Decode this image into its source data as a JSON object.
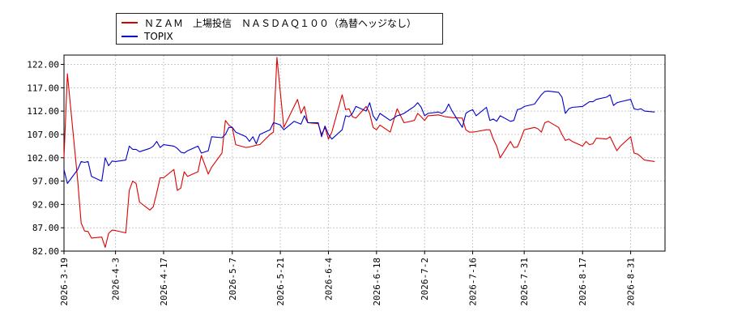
{
  "chart_data": {
    "type": "line",
    "ylim": [
      82,
      124
    ],
    "yticks": [
      "82.00",
      "87.00",
      "92.00",
      "97.00",
      "102.00",
      "107.00",
      "112.00",
      "117.00",
      "122.00"
    ],
    "x_range": [
      "2026-3-19",
      "2026-9-10"
    ],
    "x_tick_labels": [
      "2026-3-19",
      "2026-4-3",
      "2026-4-17",
      "2026-5-7",
      "2026-5-21",
      "2026-6-4",
      "2026-6-18",
      "2026-7-2",
      "2026-7-16",
      "2026-7-31",
      "2026-8-17",
      "2026-8-31"
    ],
    "grid": true,
    "legend_position": "top-left",
    "series": [
      {
        "name": "ＮＺＡＭ　上場投信　ＮＡＳＤＡＱ１００（為替ヘッジなし）",
        "color": "#dd0000",
        "points": [
          [
            "2026-3-19",
            102.0
          ],
          [
            "2026-3-20",
            120.0
          ],
          [
            "2026-3-23",
            97.0
          ],
          [
            "2026-3-24",
            88.0
          ],
          [
            "2026-3-25",
            86.3
          ],
          [
            "2026-3-26",
            86.2
          ],
          [
            "2026-3-27",
            84.8
          ],
          [
            "2026-3-30",
            85.0
          ],
          [
            "2026-3-31",
            82.8
          ],
          [
            "2026-4-1",
            85.8
          ],
          [
            "2026-4-2",
            86.5
          ],
          [
            "2026-4-3",
            86.4
          ],
          [
            "2026-4-6",
            85.9
          ],
          [
            "2026-4-7",
            95.0
          ],
          [
            "2026-4-8",
            97.0
          ],
          [
            "2026-4-9",
            96.5
          ],
          [
            "2026-4-10",
            92.5
          ],
          [
            "2026-4-13",
            90.8
          ],
          [
            "2026-4-14",
            91.5
          ],
          [
            "2026-4-15",
            94.5
          ],
          [
            "2026-4-16",
            97.7
          ],
          [
            "2026-4-17",
            97.7
          ],
          [
            "2026-4-20",
            99.5
          ],
          [
            "2026-4-21",
            95.0
          ],
          [
            "2026-4-22",
            95.5
          ],
          [
            "2026-4-23",
            99.0
          ],
          [
            "2026-4-24",
            98.0
          ],
          [
            "2026-4-27",
            99.0
          ],
          [
            "2026-4-28",
            102.5
          ],
          [
            "2026-4-30",
            98.5
          ],
          [
            "2026-5-1",
            100.0
          ],
          [
            "2026-5-4",
            103.0
          ],
          [
            "2026-5-5",
            110.0
          ],
          [
            "2026-5-6",
            109.0
          ],
          [
            "2026-5-7",
            108.5
          ],
          [
            "2026-5-8",
            104.8
          ],
          [
            "2026-5-11",
            104.2
          ],
          [
            "2026-5-12",
            104.3
          ],
          [
            "2026-5-13",
            104.5
          ],
          [
            "2026-5-14",
            104.7
          ],
          [
            "2026-5-15",
            104.8
          ],
          [
            "2026-5-18",
            107.0
          ],
          [
            "2026-5-19",
            107.5
          ],
          [
            "2026-5-20",
            123.5
          ],
          [
            "2026-5-21",
            116.0
          ],
          [
            "2026-5-22",
            108.5
          ],
          [
            "2026-5-25",
            113.0
          ],
          [
            "2026-5-26",
            114.5
          ],
          [
            "2026-5-27",
            111.5
          ],
          [
            "2026-5-28",
            113.0
          ],
          [
            "2026-5-29",
            109.5
          ],
          [
            "2026-6-1",
            109.3
          ],
          [
            "2026-6-2",
            107.0
          ],
          [
            "2026-6-3",
            108.5
          ],
          [
            "2026-6-4",
            106.0
          ],
          [
            "2026-6-5",
            107.5
          ],
          [
            "2026-6-8",
            115.5
          ],
          [
            "2026-6-9",
            112.3
          ],
          [
            "2026-6-10",
            112.5
          ],
          [
            "2026-6-11",
            110.8
          ],
          [
            "2026-6-12",
            110.5
          ],
          [
            "2026-6-15",
            113.0
          ],
          [
            "2026-6-16",
            111.5
          ],
          [
            "2026-6-17",
            108.5
          ],
          [
            "2026-6-18",
            108.0
          ],
          [
            "2026-6-19",
            109.0
          ],
          [
            "2026-6-22",
            107.5
          ],
          [
            "2026-6-23",
            110.0
          ],
          [
            "2026-6-24",
            112.5
          ],
          [
            "2026-6-25",
            111.0
          ],
          [
            "2026-6-26",
            109.5
          ],
          [
            "2026-6-29",
            110.0
          ],
          [
            "2026-6-30",
            111.5
          ],
          [
            "2026-7-1",
            110.8
          ],
          [
            "2026-7-2",
            110.0
          ],
          [
            "2026-7-3",
            111.0
          ],
          [
            "2026-7-6",
            111.2
          ],
          [
            "2026-7-7",
            111.0
          ],
          [
            "2026-7-8",
            110.8
          ],
          [
            "2026-7-9",
            110.7
          ],
          [
            "2026-7-10",
            110.6
          ],
          [
            "2026-7-13",
            110.5
          ],
          [
            "2026-7-14",
            108.0
          ],
          [
            "2026-7-15",
            107.5
          ],
          [
            "2026-7-16",
            107.5
          ],
          [
            "2026-7-17",
            107.6
          ],
          [
            "2026-7-20",
            108.0
          ],
          [
            "2026-7-21",
            108.0
          ],
          [
            "2026-7-22",
            106.0
          ],
          [
            "2026-7-23",
            104.5
          ],
          [
            "2026-7-24",
            102.0
          ],
          [
            "2026-7-27",
            105.5
          ],
          [
            "2026-7-28",
            104.2
          ],
          [
            "2026-7-29",
            104.3
          ],
          [
            "2026-7-30",
            106.0
          ],
          [
            "2026-7-31",
            108.0
          ],
          [
            "2026-8-3",
            108.5
          ],
          [
            "2026-8-4",
            108.2
          ],
          [
            "2026-8-5",
            107.5
          ],
          [
            "2026-8-6",
            109.5
          ],
          [
            "2026-8-7",
            109.8
          ],
          [
            "2026-8-10",
            108.5
          ],
          [
            "2026-8-11",
            107.0
          ],
          [
            "2026-8-12",
            105.7
          ],
          [
            "2026-8-13",
            106.0
          ],
          [
            "2026-8-14",
            105.5
          ],
          [
            "2026-8-17",
            104.5
          ],
          [
            "2026-8-18",
            105.5
          ],
          [
            "2026-8-19",
            104.8
          ],
          [
            "2026-8-20",
            105.0
          ],
          [
            "2026-8-21",
            106.2
          ],
          [
            "2026-8-24",
            106.0
          ],
          [
            "2026-8-25",
            106.5
          ],
          [
            "2026-8-26",
            105.0
          ],
          [
            "2026-8-27",
            103.5
          ],
          [
            "2026-8-28",
            104.5
          ],
          [
            "2026-8-31",
            106.5
          ],
          [
            "2026-9-1",
            103.0
          ],
          [
            "2026-9-2",
            102.8
          ],
          [
            "2026-9-3",
            102.2
          ],
          [
            "2026-9-4",
            101.5
          ],
          [
            "2026-9-7",
            101.2
          ]
        ]
      },
      {
        "name": "TOPIX",
        "color": "#0000cc",
        "points": [
          [
            "2026-3-19",
            99.5
          ],
          [
            "2026-3-20",
            96.5
          ],
          [
            "2026-3-23",
            99.5
          ],
          [
            "2026-3-24",
            101.2
          ],
          [
            "2026-3-25",
            101.0
          ],
          [
            "2026-3-26",
            101.2
          ],
          [
            "2026-3-27",
            98.0
          ],
          [
            "2026-3-30",
            97.0
          ],
          [
            "2026-3-31",
            102.0
          ],
          [
            "2026-4-1",
            100.3
          ],
          [
            "2026-4-2",
            101.3
          ],
          [
            "2026-4-3",
            101.2
          ],
          [
            "2026-4-6",
            101.5
          ],
          [
            "2026-4-7",
            104.5
          ],
          [
            "2026-4-8",
            103.8
          ],
          [
            "2026-4-9",
            103.8
          ],
          [
            "2026-4-10",
            103.3
          ],
          [
            "2026-4-13",
            104.0
          ],
          [
            "2026-4-14",
            104.5
          ],
          [
            "2026-4-15",
            105.5
          ],
          [
            "2026-4-16",
            104.2
          ],
          [
            "2026-4-17",
            104.8
          ],
          [
            "2026-4-20",
            104.5
          ],
          [
            "2026-4-21",
            104.0
          ],
          [
            "2026-4-22",
            103.2
          ],
          [
            "2026-4-23",
            103.0
          ],
          [
            "2026-4-24",
            103.5
          ],
          [
            "2026-4-27",
            104.5
          ],
          [
            "2026-4-28",
            103.0
          ],
          [
            "2026-4-30",
            103.5
          ],
          [
            "2026-5-1",
            106.5
          ],
          [
            "2026-5-4",
            106.3
          ],
          [
            "2026-5-5",
            107.0
          ],
          [
            "2026-5-6",
            108.5
          ],
          [
            "2026-5-7",
            108.5
          ],
          [
            "2026-5-8",
            107.5
          ],
          [
            "2026-5-11",
            106.5
          ],
          [
            "2026-5-12",
            105.5
          ],
          [
            "2026-5-13",
            106.5
          ],
          [
            "2026-5-14",
            105.0
          ],
          [
            "2026-5-15",
            107.0
          ],
          [
            "2026-5-18",
            108.0
          ],
          [
            "2026-5-19",
            109.5
          ],
          [
            "2026-5-20",
            109.3
          ],
          [
            "2026-5-21",
            109.0
          ],
          [
            "2026-5-22",
            108.0
          ],
          [
            "2026-5-25",
            109.8
          ],
          [
            "2026-5-26",
            109.5
          ],
          [
            "2026-5-27",
            109.2
          ],
          [
            "2026-5-28",
            111.0
          ],
          [
            "2026-5-29",
            109.5
          ],
          [
            "2026-6-1",
            109.5
          ],
          [
            "2026-6-2",
            106.5
          ],
          [
            "2026-6-3",
            108.8
          ],
          [
            "2026-6-4",
            107.0
          ],
          [
            "2026-6-5",
            106.0
          ],
          [
            "2026-6-8",
            108.0
          ],
          [
            "2026-6-9",
            111.0
          ],
          [
            "2026-6-10",
            110.8
          ],
          [
            "2026-6-11",
            111.5
          ],
          [
            "2026-6-12",
            113.0
          ],
          [
            "2026-6-15",
            112.0
          ],
          [
            "2026-6-16",
            113.8
          ],
          [
            "2026-6-17",
            111.0
          ],
          [
            "2026-6-18",
            110.0
          ],
          [
            "2026-6-19",
            111.5
          ],
          [
            "2026-6-22",
            110.0
          ],
          [
            "2026-6-23",
            110.5
          ],
          [
            "2026-6-24",
            111.0
          ],
          [
            "2026-6-25",
            111.2
          ],
          [
            "2026-6-26",
            111.5
          ],
          [
            "2026-6-29",
            113.0
          ],
          [
            "2026-6-30",
            113.8
          ],
          [
            "2026-7-1",
            112.8
          ],
          [
            "2026-7-2",
            111.0
          ],
          [
            "2026-7-3",
            111.5
          ],
          [
            "2026-7-6",
            111.8
          ],
          [
            "2026-7-7",
            111.5
          ],
          [
            "2026-7-8",
            112.0
          ],
          [
            "2026-7-9",
            113.5
          ],
          [
            "2026-7-10",
            112.0
          ],
          [
            "2026-7-13",
            108.5
          ],
          [
            "2026-7-14",
            111.5
          ],
          [
            "2026-7-15",
            112.0
          ],
          [
            "2026-7-16",
            112.3
          ],
          [
            "2026-7-17",
            111.0
          ],
          [
            "2026-7-20",
            112.8
          ],
          [
            "2026-7-21",
            110.0
          ],
          [
            "2026-7-22",
            110.3
          ],
          [
            "2026-7-23",
            109.8
          ],
          [
            "2026-7-24",
            111.0
          ],
          [
            "2026-7-27",
            109.8
          ],
          [
            "2026-7-28",
            110.0
          ],
          [
            "2026-7-29",
            112.3
          ],
          [
            "2026-7-30",
            112.5
          ],
          [
            "2026-7-31",
            113.0
          ],
          [
            "2026-8-3",
            113.5
          ],
          [
            "2026-8-4",
            114.5
          ],
          [
            "2026-8-5",
            115.5
          ],
          [
            "2026-8-6",
            116.2
          ],
          [
            "2026-8-7",
            116.3
          ],
          [
            "2026-8-10",
            116.0
          ],
          [
            "2026-8-11",
            115.0
          ],
          [
            "2026-8-12",
            111.5
          ],
          [
            "2026-8-13",
            112.5
          ],
          [
            "2026-8-14",
            112.8
          ],
          [
            "2026-8-17",
            113.0
          ],
          [
            "2026-8-18",
            113.5
          ],
          [
            "2026-8-19",
            114.0
          ],
          [
            "2026-8-20",
            114.0
          ],
          [
            "2026-8-21",
            114.5
          ],
          [
            "2026-8-24",
            115.0
          ],
          [
            "2026-8-25",
            115.5
          ],
          [
            "2026-8-26",
            113.2
          ],
          [
            "2026-8-27",
            113.8
          ],
          [
            "2026-8-28",
            114.0
          ],
          [
            "2026-8-31",
            114.5
          ],
          [
            "2026-9-1",
            112.5
          ],
          [
            "2026-9-2",
            112.3
          ],
          [
            "2026-9-3",
            112.5
          ],
          [
            "2026-9-4",
            112.0
          ],
          [
            "2026-9-7",
            111.8
          ]
        ]
      }
    ]
  }
}
